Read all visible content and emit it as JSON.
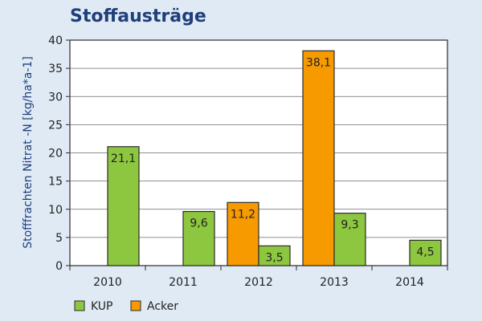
{
  "chart_data": {
    "type": "bar",
    "title": "Stoffausträge",
    "xlabel": "",
    "ylabel": "Stofffrachten Nitrat -N [kg/ha*a-1]",
    "categories": [
      "2010",
      "2011",
      "2012",
      "2013",
      "2014"
    ],
    "ylim": [
      0,
      40
    ],
    "yticks": [
      0,
      5,
      10,
      15,
      20,
      25,
      30,
      35,
      40
    ],
    "grid": true,
    "legend_position": "bottom-left",
    "series": [
      {
        "name": "Acker",
        "color": "#f79a00",
        "values": [
          null,
          null,
          11.2,
          38.1,
          null
        ],
        "labels": [
          "",
          "",
          "11,2",
          "38,1",
          ""
        ]
      },
      {
        "name": "KUP",
        "color": "#8dc63f",
        "values": [
          21.1,
          9.6,
          3.5,
          9.3,
          4.5
        ],
        "labels": [
          "21,1",
          "9,6",
          "3,5",
          "9,3",
          "4,5"
        ]
      }
    ],
    "legend_order": [
      "KUP",
      "Acker"
    ]
  }
}
